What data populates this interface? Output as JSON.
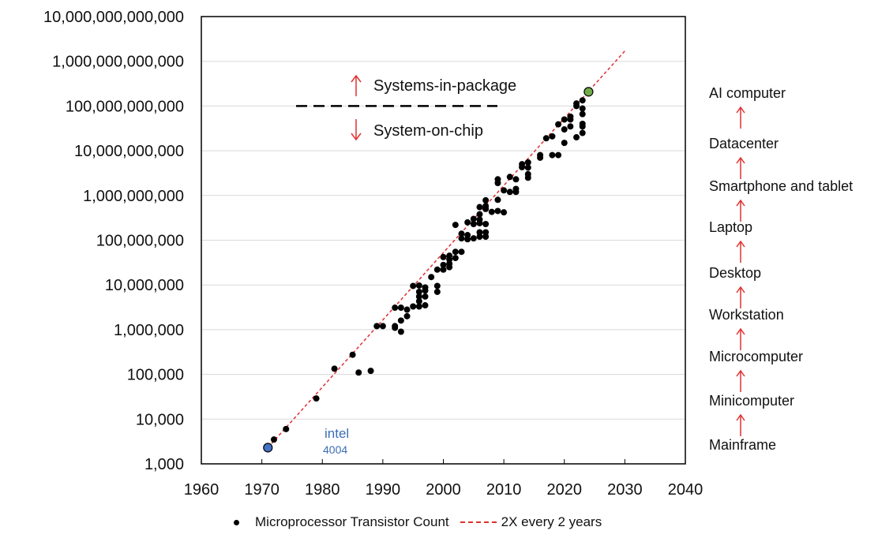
{
  "chart_data": {
    "type": "scatter",
    "title": "",
    "xlabel": "",
    "ylabel": "",
    "xlim": [
      1960,
      2040
    ],
    "ylim": [
      1000,
      10000000000000
    ],
    "yscale": "log",
    "grid": true,
    "x_ticks": [
      "1960",
      "1970",
      "1980",
      "1990",
      "2000",
      "2010",
      "2020",
      "2030",
      "2040"
    ],
    "y_ticks": [
      "1,000",
      "10,000",
      "100,000",
      "1,000,000",
      "10,000,000",
      "100,000,000",
      "1,000,000,000",
      "10,000,000,000",
      "100,000,000,000",
      "1,000,000,000,000",
      "10,000,000,000,000"
    ],
    "series": [
      {
        "name": "Microprocessor Transistor Count",
        "type": "scatter",
        "color": "#000000",
        "points": [
          [
            1972,
            3500
          ],
          [
            1974,
            6000
          ],
          [
            1979,
            29000
          ],
          [
            1982,
            134000
          ],
          [
            1985,
            275000
          ],
          [
            1986,
            110000
          ],
          [
            1988,
            120000
          ],
          [
            1989,
            1200000
          ],
          [
            1990,
            1200000
          ],
          [
            1992,
            1200000
          ],
          [
            1992,
            3100000
          ],
          [
            1992,
            1100000
          ],
          [
            1993,
            3100000
          ],
          [
            1993,
            1600000
          ],
          [
            1993,
            900000
          ],
          [
            1994,
            2000000
          ],
          [
            1994,
            2800000
          ],
          [
            1995,
            3300000
          ],
          [
            1995,
            9500000
          ],
          [
            1996,
            9700000
          ],
          [
            1996,
            3300000
          ],
          [
            1996,
            5500000
          ],
          [
            1996,
            7000000
          ],
          [
            1996,
            4300000
          ],
          [
            1997,
            3500000
          ],
          [
            1997,
            5500000
          ],
          [
            1997,
            7500000
          ],
          [
            1997,
            8800000
          ],
          [
            1998,
            15000000
          ],
          [
            1999,
            22000000
          ],
          [
            1999,
            9500000
          ],
          [
            1999,
            7000000
          ],
          [
            2000,
            28000000
          ],
          [
            2000,
            42000000
          ],
          [
            2000,
            22000000
          ],
          [
            2001,
            25000000
          ],
          [
            2001,
            45000000
          ],
          [
            2001,
            37000000
          ],
          [
            2001,
            30000000
          ],
          [
            2002,
            55000000
          ],
          [
            2002,
            40000000
          ],
          [
            2002,
            220000000
          ],
          [
            2003,
            55000000
          ],
          [
            2003,
            140000000
          ],
          [
            2003,
            110000000
          ],
          [
            2004,
            250000000
          ],
          [
            2004,
            130000000
          ],
          [
            2004,
            105000000
          ],
          [
            2005,
            300000000
          ],
          [
            2005,
            230000000
          ],
          [
            2005,
            110000000
          ],
          [
            2006,
            290000000
          ],
          [
            2006,
            380000000
          ],
          [
            2006,
            550000000
          ],
          [
            2006,
            150000000
          ],
          [
            2006,
            120000000
          ],
          [
            2006,
            240000000
          ],
          [
            2007,
            780000000
          ],
          [
            2007,
            500000000
          ],
          [
            2007,
            230000000
          ],
          [
            2007,
            150000000
          ],
          [
            2007,
            120000000
          ],
          [
            2007,
            580000000
          ],
          [
            2008,
            430000000
          ],
          [
            2009,
            800000000
          ],
          [
            2009,
            450000000
          ],
          [
            2010,
            420000000
          ],
          [
            2009,
            1900000000
          ],
          [
            2009,
            2300000000
          ],
          [
            2010,
            1300000000
          ],
          [
            2011,
            2600000000
          ],
          [
            2011,
            1200000000
          ],
          [
            2012,
            2300000000
          ],
          [
            2012,
            1200000000
          ],
          [
            2012,
            1400000000
          ],
          [
            2013,
            4300000000
          ],
          [
            2013,
            5000000000
          ],
          [
            2014,
            3000000000
          ],
          [
            2014,
            5500000000
          ],
          [
            2014,
            4200000000
          ],
          [
            2014,
            2500000000
          ],
          [
            2016,
            8000000000
          ],
          [
            2016,
            7000000000
          ],
          [
            2017,
            19000000000
          ],
          [
            2018,
            21000000000
          ],
          [
            2018,
            8000000000
          ],
          [
            2019,
            8000000000
          ],
          [
            2019,
            39000000000
          ],
          [
            2020,
            30000000000
          ],
          [
            2020,
            15000000000
          ],
          [
            2020,
            50000000000
          ],
          [
            2021,
            58000000000
          ],
          [
            2021,
            50000000000
          ],
          [
            2021,
            35000000000
          ],
          [
            2022,
            114000000000
          ],
          [
            2022,
            100000000000
          ],
          [
            2022,
            20000000000
          ],
          [
            2023,
            134000000000
          ],
          [
            2023,
            88000000000
          ],
          [
            2023,
            66000000000
          ],
          [
            2023,
            40000000000
          ],
          [
            2023,
            35000000000
          ],
          [
            2023,
            25000000000
          ]
        ]
      },
      {
        "name": "2X every 2 years",
        "type": "line",
        "color": "#e03030",
        "dash": true,
        "x": [
          1971,
          2030
        ],
        "y": [
          2300,
          1700000000000
        ]
      }
    ],
    "highlights": [
      {
        "x": 1971,
        "y": 2300,
        "color": "#4472c4"
      },
      {
        "x": 2024,
        "y": 208000000000,
        "color": "#70ad47"
      }
    ],
    "annotations": {
      "divider_level": 100000000000,
      "up_label": "Systems-in-package",
      "down_label": "System-on-chip",
      "intel_brand": "intel",
      "intel_model": "4004"
    }
  },
  "progression": {
    "items": [
      "AI computer",
      "Datacenter",
      "Smartphone and tablet",
      "Laptop",
      "Desktop",
      "Workstation",
      "Microcomputer",
      "Minicomputer",
      "Mainframe"
    ],
    "arrow_color": "#e03030"
  },
  "legend": {
    "items": [
      "Microprocessor Transistor Count",
      "2X every 2 years"
    ]
  }
}
